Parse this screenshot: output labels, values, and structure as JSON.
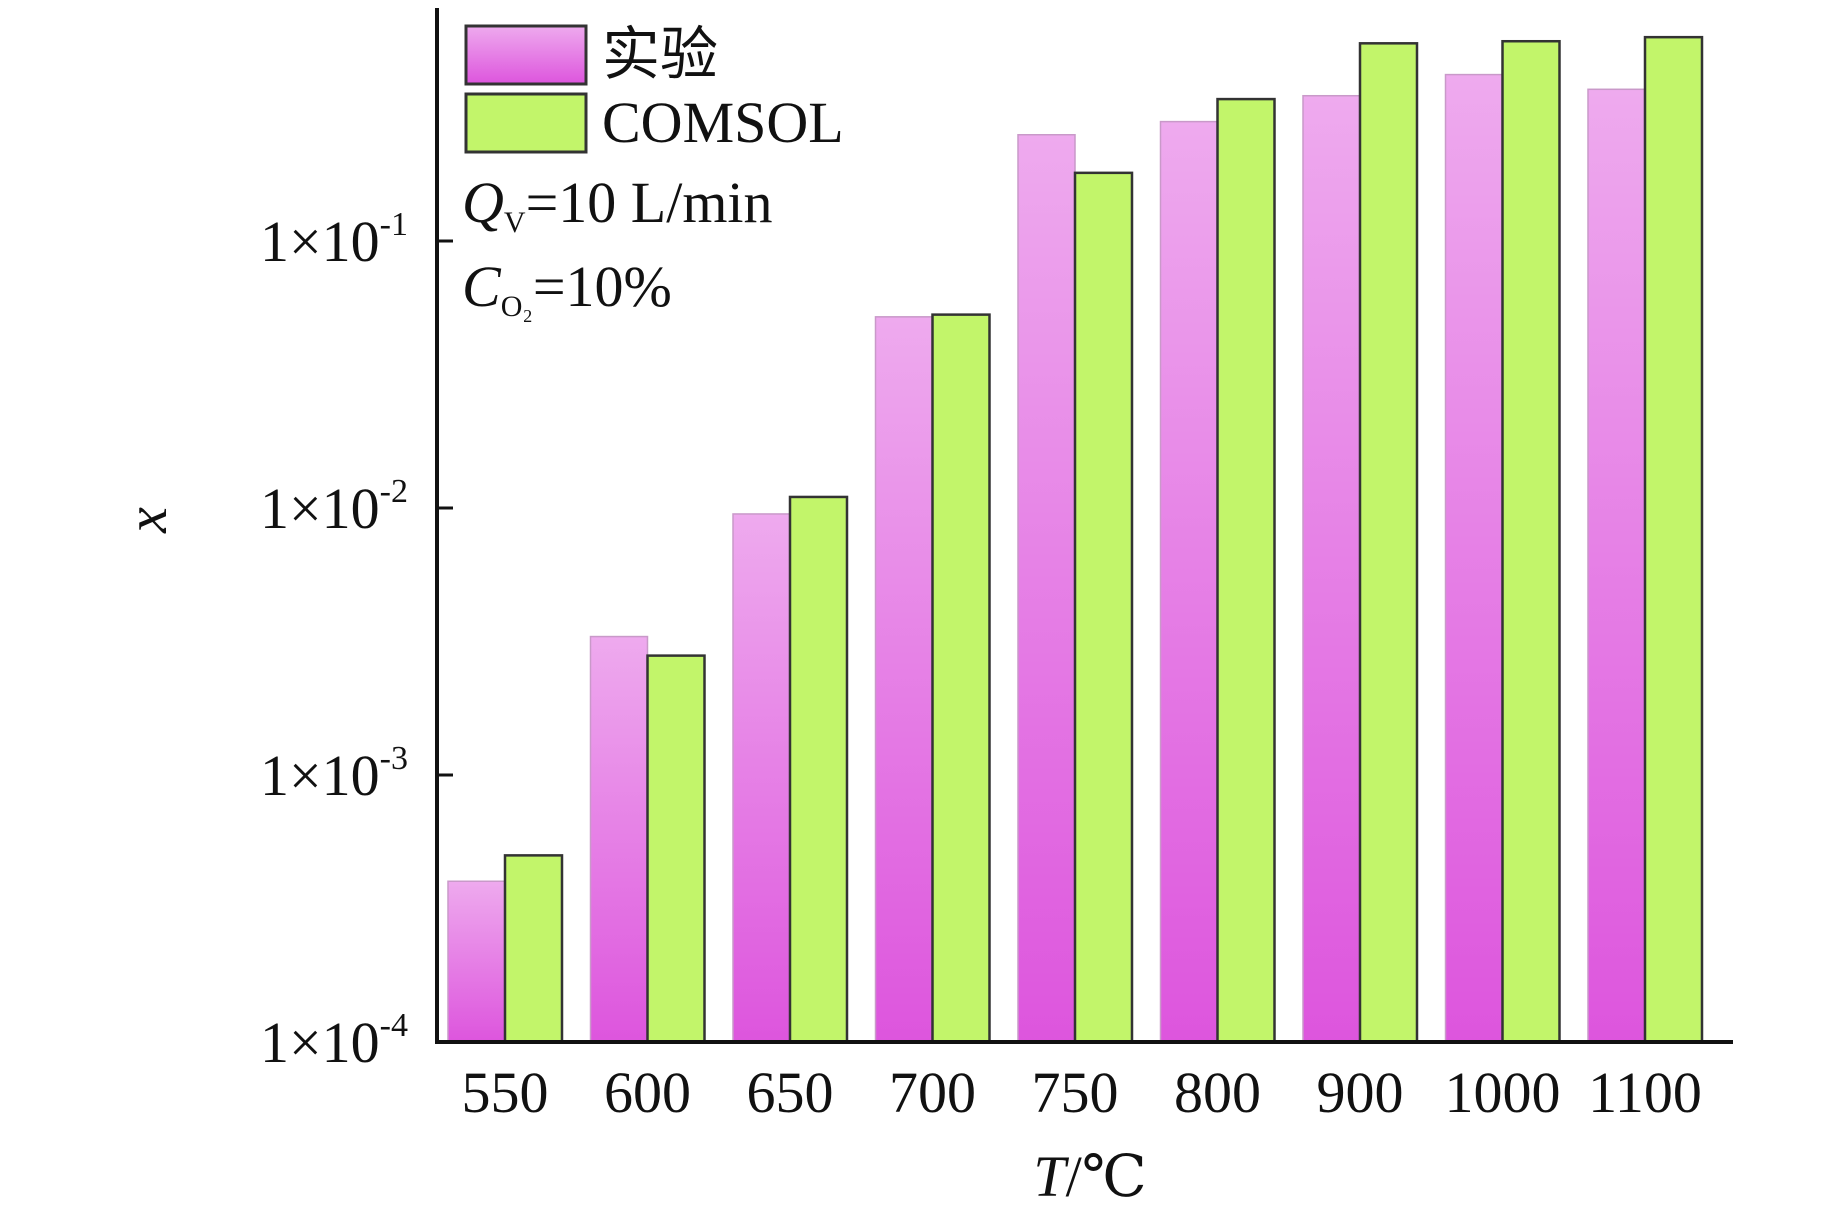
{
  "chart_data": {
    "type": "bar",
    "categories": [
      "550",
      "600",
      "650",
      "700",
      "750",
      "800",
      "900",
      "1000",
      "1100"
    ],
    "series": [
      {
        "name": "实验",
        "values": [
          0.0004,
          0.0033,
          0.0095,
          0.052,
          0.25,
          0.28,
          0.35,
          0.42,
          0.37
        ]
      },
      {
        "name": "COMSOL",
        "values": [
          0.0005,
          0.0028,
          0.011,
          0.053,
          0.18,
          0.34,
          0.55,
          0.56,
          0.58
        ]
      }
    ],
    "xlabel": {
      "main": "T",
      "sep": "/",
      "unit": "℃"
    },
    "ylabel": "x",
    "yscale": "log",
    "ylim": [
      0.0001,
      0.6
    ],
    "yticks": [
      {
        "value": 0.0001,
        "base": "1×10",
        "exp": "-4"
      },
      {
        "value": 0.001,
        "base": "1×10",
        "exp": "-3"
      },
      {
        "value": 0.01,
        "base": "1×10",
        "exp": "-2"
      },
      {
        "value": 0.1,
        "base": "1×10",
        "exp": "-1"
      }
    ],
    "annotations": [
      {
        "symbol": "Q",
        "sub": "V",
        "text": "=10 L/min"
      },
      {
        "symbol": "C",
        "sub": "O₂",
        "text": "=10%"
      }
    ],
    "legend_position": "top-left",
    "grid": false
  },
  "colors": {
    "experiment_top": "#eeaaee",
    "experiment_bottom": "#dd55dd",
    "comsol": "#c2f56a",
    "axis": "#111111",
    "bar_outline": "#333333"
  }
}
